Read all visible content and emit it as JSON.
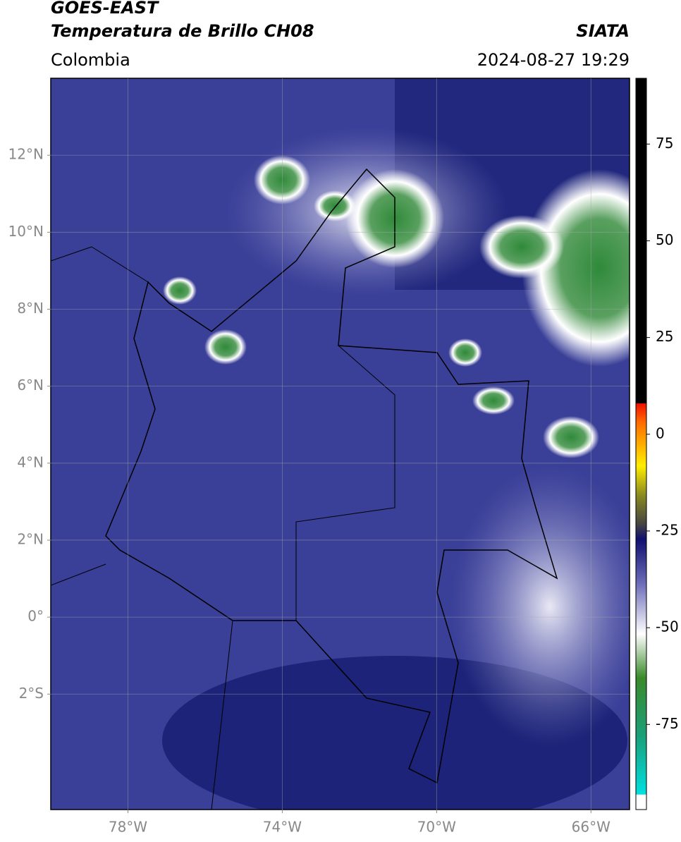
{
  "header": {
    "satellite": "GOES-EAST",
    "product": "Temperatura de Brillo CH08",
    "source": "SIATA",
    "region": "Colombia",
    "datetime": "2024-08-27 19:29"
  },
  "map": {
    "lonlim": [
      -80,
      -65
    ],
    "latlim": [
      -5,
      14
    ],
    "lonticks": [
      {
        "value": -78,
        "label": "78°W"
      },
      {
        "value": -74,
        "label": "74°W"
      },
      {
        "value": -70,
        "label": "70°W"
      },
      {
        "value": -66,
        "label": "66°W"
      }
    ],
    "latticks": [
      {
        "value": 12,
        "label": "12°N"
      },
      {
        "value": 10,
        "label": "10°N"
      },
      {
        "value": 8,
        "label": "8°N"
      },
      {
        "value": 6,
        "label": "6°N"
      },
      {
        "value": 4,
        "label": "4°N"
      },
      {
        "value": 2,
        "label": "2°N"
      },
      {
        "value": 0,
        "label": "0°"
      },
      {
        "value": -2,
        "label": "2°S"
      }
    ],
    "grid": true
  },
  "colorbar": {
    "clim": [
      -97,
      92
    ],
    "ticks": [
      75,
      50,
      25,
      0,
      -25,
      -50,
      -75
    ]
  }
}
